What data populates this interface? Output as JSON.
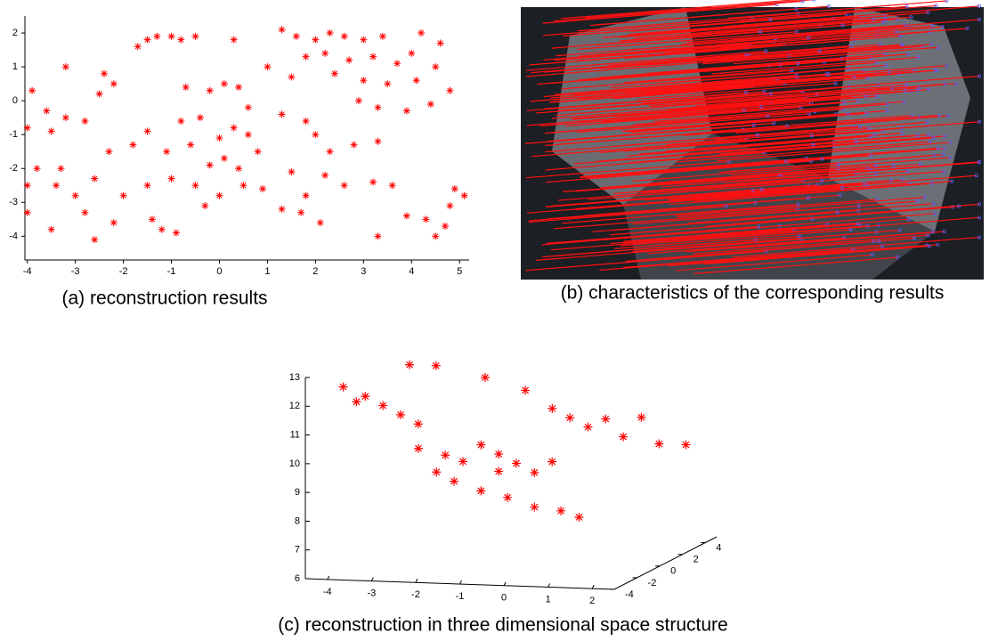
{
  "chart_data": [
    {
      "type": "scatter",
      "caption": "(a) reconstruction results",
      "color": "#ff0000",
      "x": [
        -1.5,
        -1.3,
        -1,
        -0.8,
        -1.7,
        -0.5,
        0.3,
        1.3,
        1.6,
        2,
        2.3,
        2.6,
        3,
        3.4,
        4.2,
        4.6,
        1.8,
        2.2,
        2.7,
        3.2,
        3.7,
        4,
        4.5,
        2.4,
        3,
        3.5,
        4.1,
        4.8,
        2.9,
        3.3,
        3.9,
        4.4,
        1,
        1.5,
        -3.2,
        -2.4,
        -3.9,
        -3.6,
        -3.2,
        -2.8,
        -4,
        -3.5,
        -2.5,
        -2.2,
        -0.7,
        -0.2,
        0.1,
        0.4,
        0.6,
        -0.4,
        -0.8,
        -1.5,
        -1.8,
        -2.3,
        -1.1,
        -0.6,
        0,
        0.3,
        0.6,
        0.8,
        0.1,
        0.4,
        -0.2,
        1.3,
        1.8,
        2,
        2.3,
        2.8,
        3.3,
        1.5,
        2.2,
        2.6,
        3.2,
        3.6,
        1.8,
        1.3,
        1.7,
        0.9,
        0.5,
        0,
        -0.5,
        -0.3,
        -1,
        -1.5,
        -2,
        -2.6,
        -3,
        -3.4,
        -3.8,
        -4,
        -3.5,
        -2.8,
        -2.6,
        -2.2,
        -1.4,
        -0.9,
        -1.2,
        2.1,
        3.3,
        3.9,
        4.3,
        4.5,
        4.8,
        4.7,
        5.1,
        4.9,
        -3.3,
        -4
      ],
      "y": [
        1.8,
        1.9,
        1.9,
        1.8,
        1.6,
        1.9,
        1.8,
        2.1,
        1.9,
        1.8,
        2,
        1.9,
        1.8,
        1.9,
        2,
        1.7,
        1.3,
        1.4,
        1.2,
        1.3,
        1.1,
        1.4,
        1,
        0.8,
        0.6,
        0.5,
        0.6,
        0.3,
        0,
        -0.2,
        -0.3,
        -0.1,
        1,
        0.7,
        1,
        0.8,
        0.3,
        -0.3,
        -0.5,
        -0.6,
        -0.8,
        -0.9,
        0.2,
        0.5,
        0.4,
        0.3,
        0.5,
        0.4,
        -0.2,
        -0.5,
        -0.6,
        -0.9,
        -1.3,
        -1.5,
        -1.5,
        -1.3,
        -1.1,
        -0.8,
        -1,
        -1.5,
        -1.7,
        -2,
        -1.9,
        -0.4,
        -0.6,
        -1,
        -1.5,
        -1.3,
        -1.2,
        -2.1,
        -2.2,
        -2.5,
        -2.4,
        -2.5,
        -2.8,
        -3.2,
        -3.3,
        -2.6,
        -2.5,
        -2.8,
        -2.5,
        -3.1,
        -2.3,
        -2.5,
        -2.8,
        -2.3,
        -2.8,
        -2.5,
        -2,
        -3.3,
        -3.8,
        -3.3,
        -4.1,
        -3.6,
        -3.5,
        -3.9,
        -3.8,
        -3.6,
        -4,
        -3.4,
        -3.5,
        -4,
        -3.1,
        -3.7,
        -2.8,
        -2.6,
        -2,
        -2.5
      ],
      "xlim": [
        -4.05,
        5.2
      ],
      "ylim": [
        -4.7,
        2.5
      ],
      "xticks": [
        -4,
        -3,
        -2,
        -1,
        0,
        1,
        2,
        3,
        4,
        5
      ],
      "yticks": [
        -4,
        -3,
        -2,
        -1,
        0,
        1,
        2
      ]
    },
    {
      "type": "image",
      "caption": "(b) characteristics of the corresponding results"
    },
    {
      "type": "scatter3d",
      "caption": "(c) reconstruction in three dimensional space structure",
      "color": "#ff0000",
      "x": [
        -3.9,
        -3.4,
        -3,
        -2.6,
        -2.2,
        -3.6,
        -3.17,
        -2.57,
        -2.23,
        -1.32,
        -0.71,
        0.1,
        0.9,
        1.71,
        2.32,
        1.31,
        0.5,
        -0.31,
        -2.97,
        -2.36,
        -1.96,
        -1.55,
        -1.15,
        -0.75,
        -2.16,
        -1.55,
        -0.95,
        -0.34,
        0.26,
        0.67,
        -1.15,
        -0.34,
        0.06,
        -2.56
      ],
      "y": [
        -3,
        -3,
        -3,
        -3,
        -3,
        -3,
        0,
        0,
        3,
        3,
        3,
        3,
        3,
        3,
        3,
        3,
        3,
        3,
        0,
        0,
        0,
        0,
        0,
        0,
        0,
        0,
        0,
        0,
        0,
        0,
        0,
        0,
        0,
        0
      ],
      "z": [
        12.5,
        12.2,
        11.9,
        11.6,
        11.3,
        12,
        12.7,
        12.7,
        11.7,
        11.3,
        10.7,
        10.1,
        9.8,
        9.6,
        9.6,
        10.5,
        10.4,
        10.4,
        9.8,
        9.6,
        9.4,
        10,
        9.7,
        9.4,
        8.7,
        8.4,
        8.2,
        7.9,
        7.8,
        7.6,
        9.1,
        9.1,
        9.5,
        9
      ],
      "xlim": [
        -4.5,
        2.5
      ],
      "ylim": [
        -4,
        5
      ],
      "zlim": [
        6,
        13
      ],
      "xticks": [
        -4,
        -3,
        -2,
        -1,
        0,
        1,
        2
      ],
      "yticks": [
        -4,
        -2,
        0,
        2,
        4
      ],
      "zticks": [
        6,
        7,
        8,
        9,
        10,
        11,
        12,
        13
      ]
    }
  ]
}
